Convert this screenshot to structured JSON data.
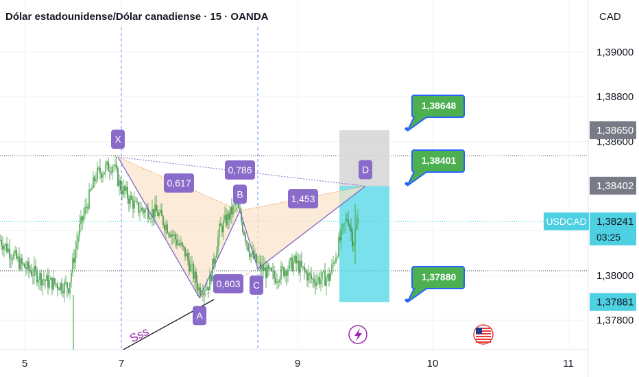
{
  "header": {
    "title": "Dólar estadounidense/Dólar canadiense · 15 · OANDA",
    "currency": "CAD"
  },
  "colors": {
    "up": "#22ab94",
    "up_alt": "#4caf50",
    "down": "#3b8a3f",
    "pattern_line": "#7b68c6",
    "pattern_fill": "#fbe3c8",
    "label_bg": "#8a6bc9",
    "callout_bg": "#4caf50",
    "callout_border": "#2962ff",
    "target_box": "#4dd5e6",
    "stop_box": "#d5d5d5",
    "symbol_badge": "#4dd0e1"
  },
  "chart_data": {
    "type": "candlestick",
    "symbol": "USDCAD",
    "x_ticks": [
      "5",
      "7",
      "9",
      "10",
      "11"
    ],
    "y_ticks": [
      "1,39000",
      "1,38800",
      "1,38600",
      "1,38000",
      "1,37800"
    ],
    "ylim": [
      1.3772,
      1.3918
    ],
    "price_labels": [
      {
        "value": "1,38650",
        "kind": "gray"
      },
      {
        "value": "1,38402",
        "kind": "gray"
      },
      {
        "value": "1,37881",
        "kind": "cyan"
      }
    ],
    "current_price": {
      "value": "1,38241",
      "symbol": "USDCAD",
      "countdown": "03:25"
    },
    "harmonic_points": [
      {
        "label": "X",
        "price": 1.3853
      },
      {
        "label": "A",
        "price": 1.379
      },
      {
        "label": "B",
        "price": 1.3829
      },
      {
        "label": "C",
        "price": 1.3803
      },
      {
        "label": "D",
        "price": 1.384
      }
    ],
    "ratios": [
      "0,617",
      "0,786",
      "1,453",
      "0,603"
    ],
    "callouts": [
      "1,38648",
      "1,38401",
      "1,37880"
    ],
    "trendline_label": "Sss",
    "position": {
      "target": 1.3788,
      "entry": 1.384,
      "stop": 1.3865
    },
    "event_icons": [
      "lightning-icon",
      "us-flag-icon"
    ]
  }
}
